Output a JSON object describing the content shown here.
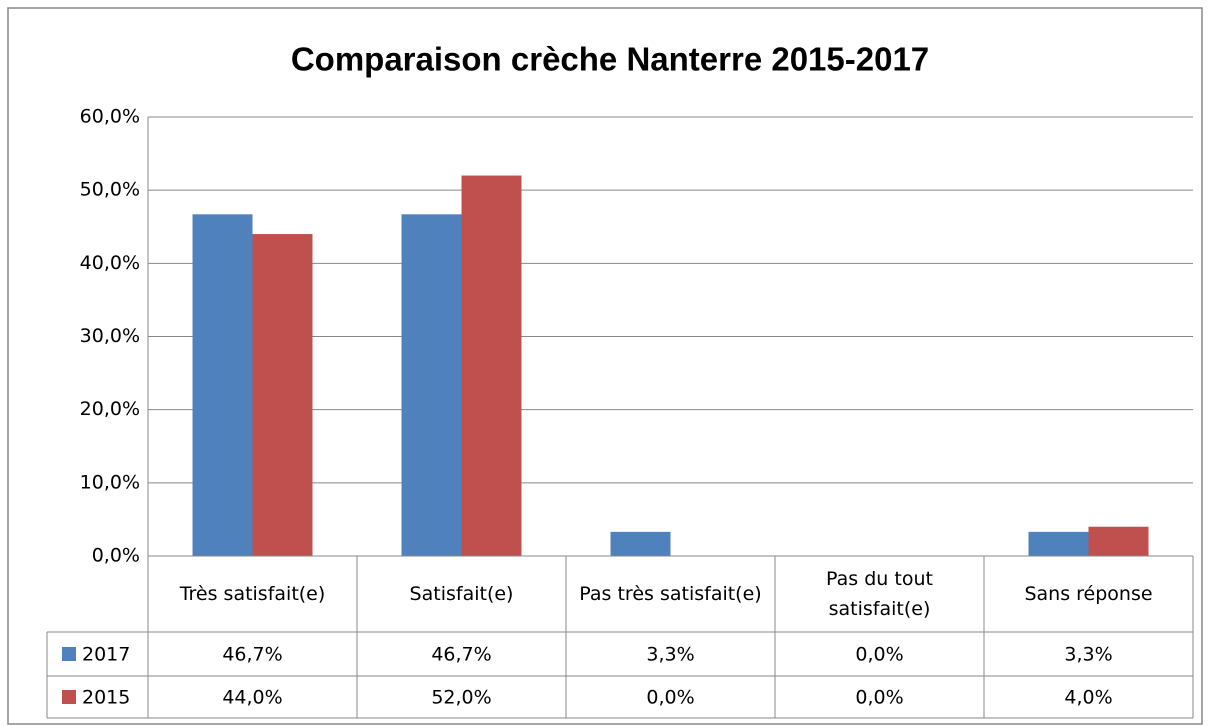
{
  "chart_data": {
    "type": "bar",
    "title": "Comparaison crèche Nanterre 2015-2017",
    "categories": [
      "Très satisfait(e)",
      "Satisfait(e)",
      "Pas très satisfait(e)",
      "Pas du tout satisfait(e)",
      "Sans réponse"
    ],
    "series": [
      {
        "name": "2017",
        "color": "#4f81bd",
        "values": [
          46.7,
          46.7,
          3.3,
          0.0,
          3.3
        ],
        "value_labels": [
          "46,7%",
          "46,7%",
          "3,3%",
          "0,0%",
          "3,3%"
        ]
      },
      {
        "name": "2015",
        "color": "#c0504d",
        "values": [
          44.0,
          52.0,
          0.0,
          0.0,
          4.0
        ],
        "value_labels": [
          "44,0%",
          "52,0%",
          "0,0%",
          "0,0%",
          "4,0%"
        ]
      }
    ],
    "ylim": [
      0,
      60
    ],
    "yticks": [
      {
        "value": 0,
        "label": "0,0%"
      },
      {
        "value": 10,
        "label": "10,0%"
      },
      {
        "value": 20,
        "label": "20,0%"
      },
      {
        "value": 30,
        "label": "30,0%"
      },
      {
        "value": 40,
        "label": "40,0%"
      },
      {
        "value": 50,
        "label": "50,0%"
      },
      {
        "value": 60,
        "label": "60,0%"
      }
    ],
    "grid": true
  }
}
